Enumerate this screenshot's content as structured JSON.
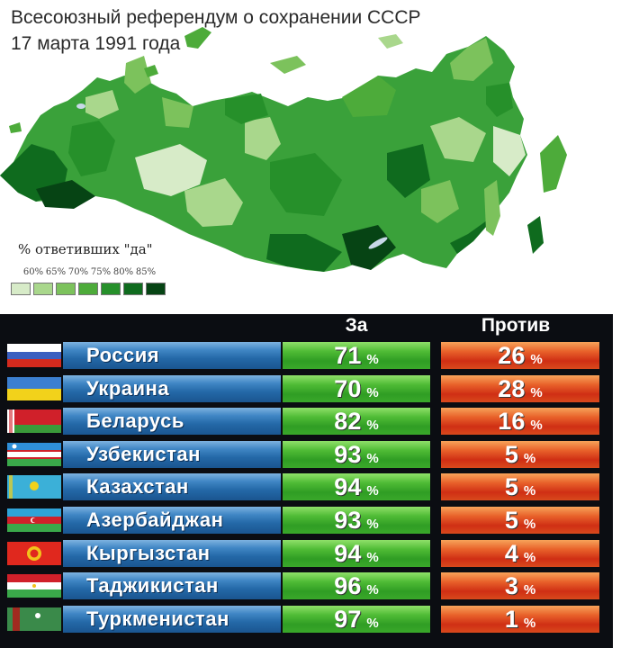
{
  "map_section": {
    "title_line1": "Всесоюзный референдум о сохранении СССР",
    "title_line2": "17 марта 1991 года",
    "legend": {
      "label": "% ответивших \"да\"",
      "ticks": [
        "60%",
        "65%",
        "70%",
        "75%",
        "80%",
        "85%"
      ],
      "colors": [
        "#d7ebc8",
        "#a9d78c",
        "#7cc25c",
        "#4dab3a",
        "#26902a",
        "#0f6b1e",
        "#064414"
      ]
    }
  },
  "results_table": {
    "col_za": "За",
    "col_protiv": "Против",
    "percent_sign": "%",
    "rows": [
      {
        "name": "Россия",
        "flag": "russia-flag",
        "za": "71",
        "protiv": "26"
      },
      {
        "name": "Украина",
        "flag": "ukraine-flag",
        "za": "70",
        "protiv": "28"
      },
      {
        "name": "Беларусь",
        "flag": "belarus-flag",
        "za": "82",
        "protiv": "16"
      },
      {
        "name": "Узбекистан",
        "flag": "uzbekistan-flag",
        "za": "93",
        "protiv": "5"
      },
      {
        "name": "Казахстан",
        "flag": "kazakhstan-flag",
        "za": "94",
        "protiv": "5"
      },
      {
        "name": "Азербайджан",
        "flag": "azerbaijan-flag",
        "za": "93",
        "protiv": "5"
      },
      {
        "name": "Кыргызстан",
        "flag": "kyrgyzstan-flag",
        "za": "94",
        "protiv": "4"
      },
      {
        "name": "Таджикистан",
        "flag": "tajikistan-flag",
        "za": "96",
        "protiv": "3"
      },
      {
        "name": "Туркменистан",
        "flag": "turkmenistan-flag",
        "za": "97",
        "protiv": "1"
      }
    ]
  }
}
